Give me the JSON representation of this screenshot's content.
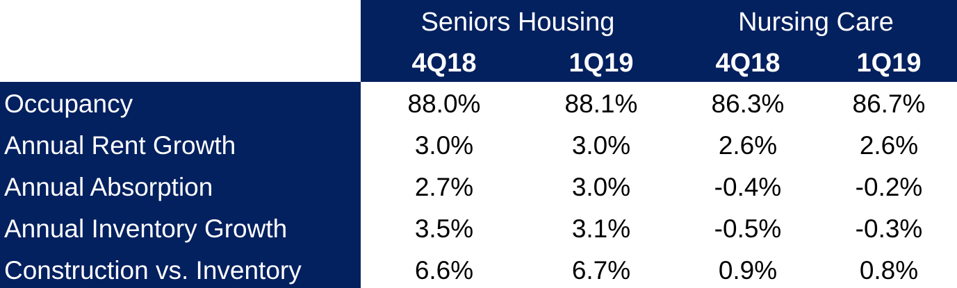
{
  "colors": {
    "header_bg": "#03205f",
    "header_text": "#ffffff",
    "cell_bg": "#ffffff",
    "cell_text": "#000000"
  },
  "groups": [
    {
      "label": "Seniors Housing"
    },
    {
      "label": "Nursing Care"
    }
  ],
  "periods": [
    "4Q18",
    "1Q19",
    "4Q18",
    "1Q19"
  ],
  "rows": [
    {
      "label": "Occupancy",
      "values": [
        "88.0%",
        "88.1%",
        "86.3%",
        "86.7%"
      ]
    },
    {
      "label": "Annual Rent Growth",
      "values": [
        "3.0%",
        "3.0%",
        "2.6%",
        "2.6%"
      ]
    },
    {
      "label": "Annual Absorption",
      "values": [
        "2.7%",
        "3.0%",
        "-0.4%",
        "-0.2%"
      ]
    },
    {
      "label": "Annual Inventory Growth",
      "values": [
        "3.5%",
        "3.1%",
        "-0.5%",
        "-0.3%"
      ]
    },
    {
      "label": "Construction vs. Inventory",
      "values": [
        "6.6%",
        "6.7%",
        "0.9%",
        "0.8%"
      ]
    }
  ]
}
